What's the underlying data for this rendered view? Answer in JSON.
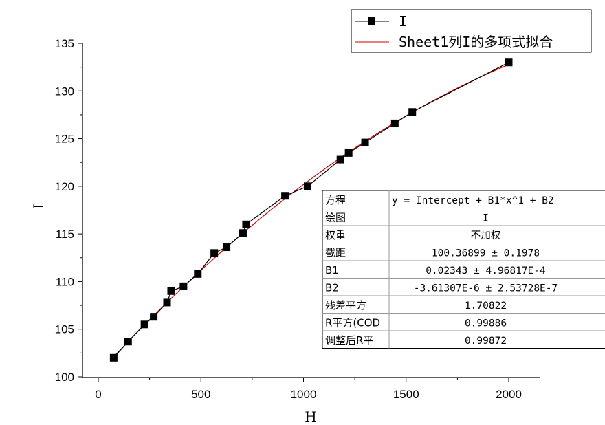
{
  "chart_data": {
    "type": "scatter",
    "xlabel": "H",
    "ylabel": "I",
    "xlim": [
      -40,
      2150
    ],
    "ylim": [
      100,
      136
    ],
    "x_ticks": [
      0,
      500,
      1000,
      1500,
      2000
    ],
    "y_ticks": [
      100,
      105,
      110,
      115,
      120,
      125,
      130,
      135
    ],
    "series": [
      {
        "name": "I",
        "color": "#000000",
        "marker": "square",
        "x": [
          75,
          145,
          225,
          270,
          335,
          355,
          415,
          485,
          565,
          625,
          705,
          720,
          910,
          1020,
          1180,
          1220,
          1300,
          1445,
          1530,
          2000
        ],
        "y": [
          102.0,
          103.7,
          105.5,
          106.3,
          107.8,
          109.0,
          109.5,
          110.8,
          113.0,
          113.6,
          115.1,
          116.0,
          119.0,
          120.0,
          122.8,
          123.5,
          124.6,
          126.6,
          127.8,
          133.0
        ]
      },
      {
        "name": "Sheet1列I的多项式拟合",
        "color": "#cc0000",
        "type": "line",
        "fit": {
          "intercept": 100.36899,
          "b1": 0.02343,
          "b2": -3.61307e-06
        }
      }
    ],
    "legend": {
      "position": "top-right",
      "entries": [
        "I",
        "Sheet1列I的多项式拟合"
      ]
    },
    "table": {
      "rows": [
        [
          "方程",
          "y = Intercept + B1*x^1 + B2"
        ],
        [
          "绘图",
          "I"
        ],
        [
          "权重",
          "不加权"
        ],
        [
          "截距",
          "100.36899 ± 0.1978"
        ],
        [
          "B1",
          "0.02343 ± 4.96817E-4"
        ],
        [
          "B2",
          "-3.61307E-6 ± 2.53728E-7"
        ],
        [
          "残差平方",
          "1.70822"
        ],
        [
          "R平方(COD",
          "0.99886"
        ],
        [
          "调整后R平",
          "0.99872"
        ]
      ]
    },
    "grid": false
  }
}
